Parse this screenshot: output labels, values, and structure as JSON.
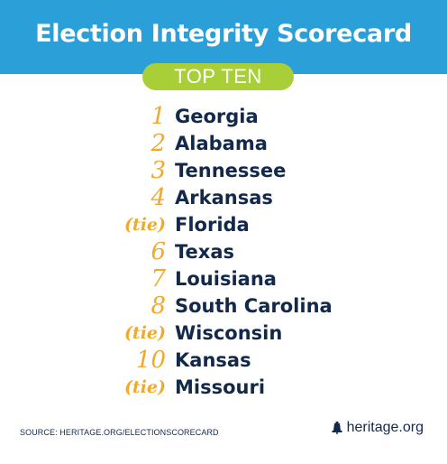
{
  "header": {
    "title": "Election Integrity Scorecard",
    "subtitle": "TOP TEN"
  },
  "rankings": [
    {
      "rank": "1",
      "state": "Georgia"
    },
    {
      "rank": "2",
      "state": "Alabama"
    },
    {
      "rank": "3",
      "state": "Tennessee"
    },
    {
      "rank": "4",
      "state": "Arkansas"
    },
    {
      "rank": "(tie)",
      "state": "Florida"
    },
    {
      "rank": "6",
      "state": "Texas"
    },
    {
      "rank": "7",
      "state": "Louisiana"
    },
    {
      "rank": "8",
      "state": "South Carolina"
    },
    {
      "rank": "(tie)",
      "state": "Wisconsin"
    },
    {
      "rank": "10",
      "state": "Kansas"
    },
    {
      "rank": "(tie)",
      "state": "Missouri"
    }
  ],
  "footer": {
    "source": "SOURCE: HERITAGE.ORG/ELECTIONSCORECARD",
    "brand": "heritage.org",
    "brand_icon": "liberty-bell-icon"
  },
  "colors": {
    "header_bg": "#2b9fd7",
    "pill_bg": "#a8cf38",
    "rank": "#f1a92b",
    "state": "#13294b"
  }
}
